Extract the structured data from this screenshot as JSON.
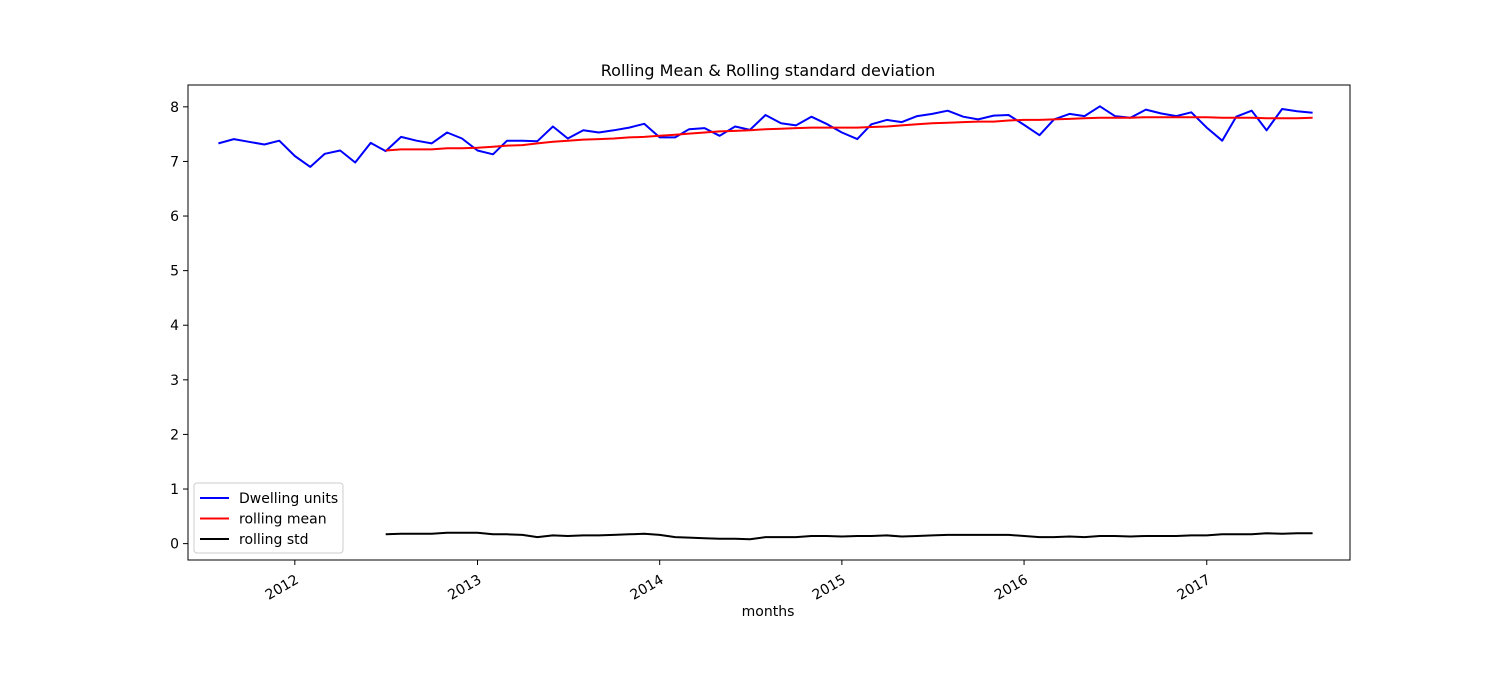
{
  "chart_data": {
    "type": "line",
    "title": "Rolling Mean & Rolling standard deviation",
    "xlabel": "months",
    "ylabel": "",
    "x_axis": "date",
    "xlim": [
      "2011-06-01",
      "2017-10-15"
    ],
    "ylim": [
      -0.3,
      8.4
    ],
    "yticks": [
      0,
      1,
      2,
      3,
      4,
      5,
      6,
      7,
      8
    ],
    "xticks": [
      "2012-01-01",
      "2013-01-01",
      "2014-01-01",
      "2015-01-01",
      "2016-01-01",
      "2017-01-01"
    ],
    "xtick_labels": [
      "2012",
      "2013",
      "2014",
      "2015",
      "2016",
      "2017"
    ],
    "grid": false,
    "legend_position": "lower-left",
    "x": [
      "2011-08",
      "2011-09",
      "2011-10",
      "2011-11",
      "2011-12",
      "2012-01",
      "2012-02",
      "2012-03",
      "2012-04",
      "2012-05",
      "2012-06",
      "2012-07",
      "2012-08",
      "2012-09",
      "2012-10",
      "2012-11",
      "2012-12",
      "2013-01",
      "2013-02",
      "2013-03",
      "2013-04",
      "2013-05",
      "2013-06",
      "2013-07",
      "2013-08",
      "2013-09",
      "2013-10",
      "2013-11",
      "2013-12",
      "2014-01",
      "2014-02",
      "2014-03",
      "2014-04",
      "2014-05",
      "2014-06",
      "2014-07",
      "2014-08",
      "2014-09",
      "2014-10",
      "2014-11",
      "2014-12",
      "2015-01",
      "2015-02",
      "2015-03",
      "2015-04",
      "2015-05",
      "2015-06",
      "2015-07",
      "2015-08",
      "2015-09",
      "2015-10",
      "2015-11",
      "2015-12",
      "2016-01",
      "2016-02",
      "2016-03",
      "2016-04",
      "2016-05",
      "2016-06",
      "2016-07",
      "2016-08",
      "2016-09",
      "2016-10",
      "2016-11",
      "2016-12",
      "2017-01",
      "2017-02",
      "2017-03",
      "2017-04",
      "2017-05",
      "2017-06",
      "2017-07",
      "2017-08"
    ],
    "series": [
      {
        "name": "Dwelling units",
        "color": "#0000ff",
        "values": [
          7.33,
          7.41,
          7.36,
          7.31,
          7.38,
          7.1,
          6.9,
          7.14,
          7.2,
          6.98,
          7.34,
          7.19,
          7.45,
          7.38,
          7.33,
          7.53,
          7.42,
          7.2,
          7.13,
          7.38,
          7.38,
          7.37,
          7.64,
          7.42,
          7.57,
          7.53,
          7.57,
          7.62,
          7.69,
          7.44,
          7.44,
          7.59,
          7.61,
          7.47,
          7.64,
          7.58,
          7.85,
          7.7,
          7.66,
          7.82,
          7.69,
          7.53,
          7.41,
          7.68,
          7.76,
          7.72,
          7.83,
          7.87,
          7.93,
          7.82,
          7.77,
          7.84,
          7.85,
          7.67,
          7.48,
          7.77,
          7.87,
          7.83,
          8.01,
          7.83,
          7.8,
          7.95,
          7.88,
          7.83,
          7.9,
          7.62,
          7.38,
          7.82,
          7.93,
          7.57,
          7.96,
          7.92,
          7.89
        ]
      },
      {
        "name": "rolling mean",
        "color": "#ff0000",
        "values": [
          null,
          null,
          null,
          null,
          null,
          null,
          null,
          null,
          null,
          null,
          null,
          7.2,
          7.22,
          7.22,
          7.22,
          7.24,
          7.24,
          7.25,
          7.27,
          7.29,
          7.3,
          7.33,
          7.36,
          7.38,
          7.4,
          7.41,
          7.42,
          7.44,
          7.45,
          7.47,
          7.49,
          7.51,
          7.53,
          7.55,
          7.56,
          7.57,
          7.59,
          7.6,
          7.61,
          7.62,
          7.62,
          7.62,
          7.62,
          7.63,
          7.64,
          7.66,
          7.68,
          7.7,
          7.71,
          7.72,
          7.73,
          7.73,
          7.75,
          7.76,
          7.76,
          7.77,
          7.78,
          7.79,
          7.8,
          7.8,
          7.8,
          7.81,
          7.81,
          7.81,
          7.81,
          7.81,
          7.8,
          7.8,
          7.8,
          7.79,
          7.79,
          7.79,
          7.8
        ]
      },
      {
        "name": "rolling std",
        "color": "#000000",
        "values": [
          null,
          null,
          null,
          null,
          null,
          null,
          null,
          null,
          null,
          null,
          null,
          0.17,
          0.18,
          0.18,
          0.18,
          0.2,
          0.2,
          0.2,
          0.17,
          0.17,
          0.16,
          0.12,
          0.15,
          0.14,
          0.15,
          0.15,
          0.16,
          0.17,
          0.18,
          0.16,
          0.12,
          0.11,
          0.1,
          0.09,
          0.09,
          0.08,
          0.12,
          0.12,
          0.12,
          0.14,
          0.14,
          0.13,
          0.14,
          0.14,
          0.15,
          0.13,
          0.14,
          0.15,
          0.16,
          0.16,
          0.16,
          0.16,
          0.16,
          0.14,
          0.12,
          0.12,
          0.13,
          0.12,
          0.14,
          0.14,
          0.13,
          0.14,
          0.14,
          0.14,
          0.15,
          0.15,
          0.17,
          0.17,
          0.17,
          0.19,
          0.18,
          0.19,
          0.19
        ]
      }
    ]
  }
}
